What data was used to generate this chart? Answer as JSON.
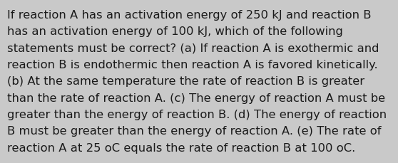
{
  "text": "If reaction A has an activation energy of 250 kJ and reaction B has an activation energy of 100 kJ, which of the following statements must be correct? (a) If reaction A is exothermic and reaction B is endothermic then reaction A is favored kinetically. (b) At the same temperature the rate of reaction B is greater than the rate of reaction A. (c) The energy of reaction A must be greater than the energy of reaction B. (d) The energy of reaction B must be greater than the energy of reaction A. (e) The rate of reaction A at 25 oC equals the rate of reaction B at 100 oC.",
  "lines": [
    "If reaction A has an activation energy of 250 kJ and reaction B",
    "has an activation energy of 100 kJ, which of the following",
    "statements must be correct? (a) If reaction A is exothermic and",
    "reaction B is endothermic then reaction A is favored kinetically.",
    "(b) At the same temperature the rate of reaction B is greater",
    "than the rate of reaction A. (c) The energy of reaction A must be",
    "greater than the energy of reaction B. (d) The energy of reaction",
    "B must be greater than the energy of reaction A. (e) The rate of",
    "reaction A at 25 oC equals the rate of reaction B at 100 oC."
  ],
  "background_color": "#c9c9c9",
  "text_color": "#1a1a1a",
  "font_size": 11.8,
  "fig_width": 5.58,
  "fig_height": 2.3,
  "dpi": 100
}
